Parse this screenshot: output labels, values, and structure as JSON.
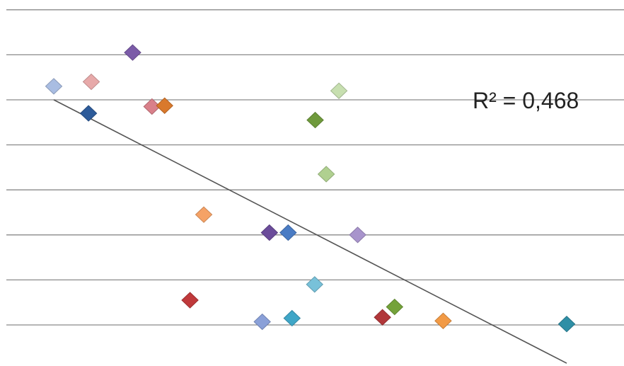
{
  "chart_data": {
    "type": "scatter",
    "title": "",
    "xlabel": "",
    "ylabel": "",
    "grid": true,
    "legend": "none",
    "xlim": [
      0,
      10
    ],
    "ylim": [
      0,
      7
    ],
    "gridlines_y": [
      0,
      1,
      2,
      3,
      4,
      5,
      6,
      7
    ],
    "points": [
      {
        "x": 0.0,
        "y": 5.3,
        "color": "#a9bde2"
      },
      {
        "x": 0.68,
        "y": 5.4,
        "color": "#e7a9a9"
      },
      {
        "x": 0.63,
        "y": 4.7,
        "color": "#2d5b9a"
      },
      {
        "x": 1.43,
        "y": 6.05,
        "color": "#7b5ba8"
      },
      {
        "x": 1.78,
        "y": 4.85,
        "color": "#d9808a"
      },
      {
        "x": 2.01,
        "y": 4.87,
        "color": "#d9792c"
      },
      {
        "x": 2.72,
        "y": 2.45,
        "color": "#f5a266"
      },
      {
        "x": 2.47,
        "y": 0.55,
        "color": "#c0393b"
      },
      {
        "x": 3.91,
        "y": 2.05,
        "color": "#6b4c9a"
      },
      {
        "x": 4.25,
        "y": 2.05,
        "color": "#4a7cc4"
      },
      {
        "x": 3.78,
        "y": 0.07,
        "color": "#8aa0d8"
      },
      {
        "x": 4.32,
        "y": 0.15,
        "color": "#3fa6c7"
      },
      {
        "x": 4.73,
        "y": 0.9,
        "color": "#78c1d9"
      },
      {
        "x": 4.74,
        "y": 4.55,
        "color": "#6f9a3c"
      },
      {
        "x": 4.94,
        "y": 3.35,
        "color": "#b0d090"
      },
      {
        "x": 5.17,
        "y": 5.2,
        "color": "#c7dfb0"
      },
      {
        "x": 5.51,
        "y": 2.0,
        "color": "#a894cc"
      },
      {
        "x": 5.96,
        "y": 0.17,
        "color": "#b1373a"
      },
      {
        "x": 6.18,
        "y": 0.4,
        "color": "#74a23a"
      },
      {
        "x": 7.06,
        "y": 0.09,
        "color": "#f29a45"
      },
      {
        "x": 9.3,
        "y": 0.02,
        "color": "#2f8fa6"
      }
    ],
    "trendline": {
      "type": "linear",
      "start": {
        "x": 0.0,
        "y": 5.0
      },
      "end": {
        "x": 9.3,
        "y": -0.85
      }
    },
    "annotation": "R² = 0,468"
  }
}
